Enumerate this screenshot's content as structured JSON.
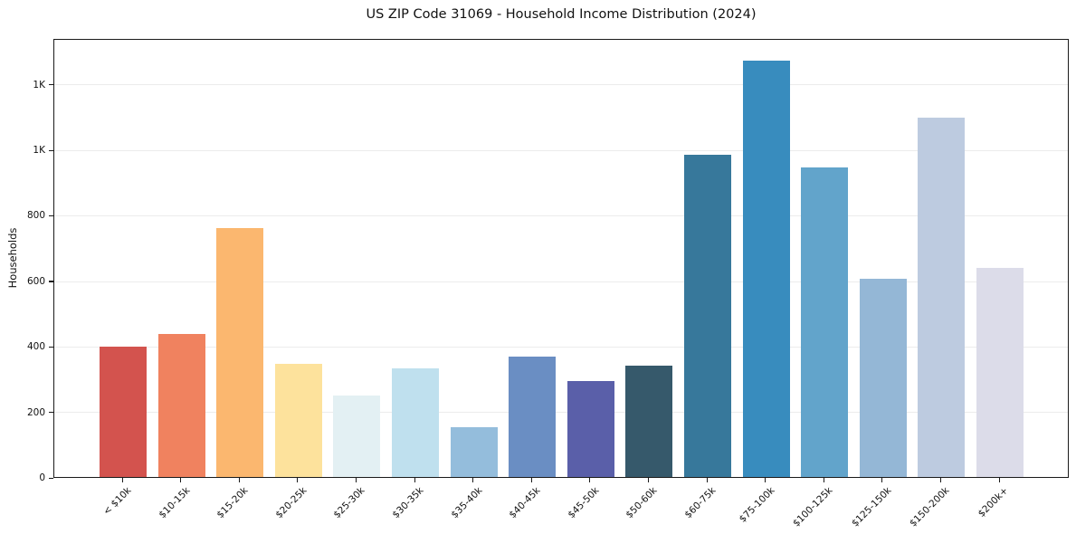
{
  "title": "US ZIP Code 31069 - Household Income Distribution (2024)",
  "chart_data": {
    "type": "bar",
    "title": "US ZIP Code 31069 - Household Income Distribution (2024)",
    "xlabel": "",
    "ylabel": "Households",
    "ylim": [
      0,
      1340
    ],
    "grid": "horizontal",
    "legend": "none",
    "categories": [
      "< $10k",
      "$10-15k",
      "$15-20k",
      "$20-25k",
      "$25-30k",
      "$30-35k",
      "$35-40k",
      "$40-45k",
      "$45-50k",
      "$50-60k",
      "$60-75k",
      "$75-100k",
      "$100-125k",
      "$125-150k",
      "$150-200k",
      "$200k+"
    ],
    "values": [
      397,
      436,
      760,
      345,
      248,
      331,
      152,
      367,
      293,
      341,
      983,
      1272,
      944,
      605,
      1096,
      637
    ],
    "bar_colors": [
      "#d3534e",
      "#f0825f",
      "#fbb76f",
      "#fde29c",
      "#e3f0f3",
      "#bfe0ee",
      "#94bddc",
      "#6a8ec3",
      "#5a5fa9",
      "#36596b",
      "#37789b",
      "#388cbe",
      "#62a4cb",
      "#94b7d6",
      "#bdcbe0",
      "#dcdce9"
    ],
    "yticks": [
      {
        "value": 0,
        "label": "0"
      },
      {
        "value": 200,
        "label": "200"
      },
      {
        "value": 400,
        "label": "400"
      },
      {
        "value": 600,
        "label": "600"
      },
      {
        "value": 800,
        "label": "800"
      },
      {
        "value": 1000,
        "label": "1K"
      },
      {
        "value": 1200,
        "label": "1K"
      }
    ],
    "axis_color": "#1a1a1a",
    "gridline_color": "#ececec",
    "background_color": "#ffffff"
  }
}
